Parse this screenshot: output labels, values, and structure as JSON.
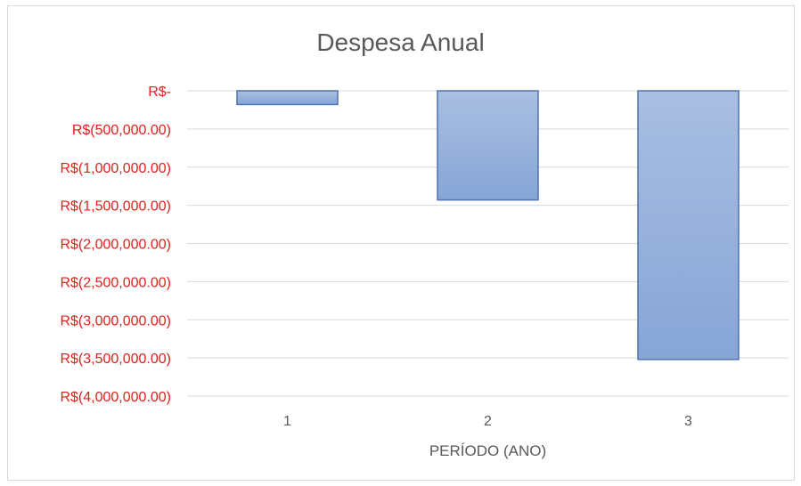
{
  "chart_data": {
    "type": "bar",
    "title": "Despesa Anual",
    "xlabel": "PERÍODO (ANO)",
    "ylabel": "",
    "categories": [
      "1",
      "2",
      "3"
    ],
    "values": [
      -180000,
      -1430000,
      -3520000
    ],
    "ylim": [
      -4000000,
      0
    ],
    "y_ticks": [
      0,
      -500000,
      -1000000,
      -1500000,
      -2000000,
      -2500000,
      -3000000,
      -3500000,
      -4000000
    ],
    "y_tick_labels": [
      "R$-",
      "R$(500,000.00)",
      "R$(1,000,000.00)",
      "R$(1,500,000.00)",
      "R$(2,000,000.00)",
      "R$(2,500,000.00)",
      "R$(3,000,000.00)",
      "R$(3,500,000.00)",
      "R$(4,000,000.00)"
    ],
    "grid": true,
    "legend": "none",
    "colors": {
      "bar_fill_top": "#a9bfe2",
      "bar_fill_bottom": "#86a5d6",
      "bar_stroke": "#4f72b0",
      "y_tick_label": "#e0201b",
      "x_tick_label": "#595959",
      "gridline": "#d9d9d9"
    }
  }
}
